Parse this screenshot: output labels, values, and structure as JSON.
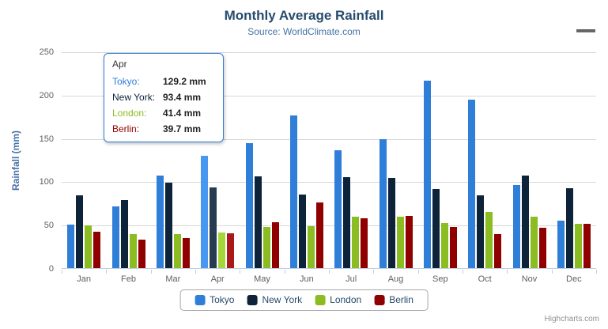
{
  "header": {
    "title": "Monthly Average Rainfall",
    "subtitle": "Source: WorldClimate.com"
  },
  "export_menu": {
    "icon": "hamburger-menu",
    "color": "#666666"
  },
  "chart_data": {
    "type": "bar",
    "title": "Monthly Average Rainfall",
    "subtitle": "Source: WorldClimate.com",
    "xlabel": "",
    "ylabel": "Rainfall (mm)",
    "ylim": [
      0,
      250
    ],
    "yticks": [
      0,
      50,
      100,
      150,
      200,
      250
    ],
    "grid": true,
    "legend_position": "bottom",
    "categories": [
      "Jan",
      "Feb",
      "Mar",
      "Apr",
      "May",
      "Jun",
      "Jul",
      "Aug",
      "Sep",
      "Oct",
      "Nov",
      "Dec"
    ],
    "series": [
      {
        "name": "Tokyo",
        "color": "#2f7ed8",
        "hover_color": "#4897f1",
        "values": [
          49.9,
          71.5,
          106.4,
          129.2,
          144.0,
          176.0,
          135.6,
          148.5,
          216.4,
          194.1,
          95.6,
          54.4
        ]
      },
      {
        "name": "New York",
        "color": "#0d233a",
        "hover_color": "#263c53",
        "values": [
          83.6,
          78.8,
          98.5,
          93.4,
          106.0,
          84.5,
          105.0,
          104.3,
          91.2,
          83.5,
          106.6,
          92.3
        ]
      },
      {
        "name": "London",
        "color": "#8bbc21",
        "hover_color": "#a4d53a",
        "values": [
          48.9,
          38.8,
          39.3,
          41.4,
          47.0,
          48.3,
          59.0,
          59.6,
          52.4,
          65.2,
          59.3,
          51.2
        ]
      },
      {
        "name": "Berlin",
        "color": "#910000",
        "hover_color": "#aa1919",
        "values": [
          42.4,
          33.2,
          34.5,
          39.7,
          52.6,
          75.5,
          57.4,
          60.4,
          47.6,
          39.1,
          46.8,
          51.1
        ]
      }
    ],
    "highlighted_category": "Apr",
    "axis_colors": {
      "grid_line": "#d8d8d8",
      "axis_line": "#c0d0e0",
      "tick_label": "#606060"
    }
  },
  "tooltip": {
    "header": "Apr",
    "border_color": "#2f7ed8",
    "rows": [
      {
        "label": "Tokyo:",
        "value": "129.2 mm",
        "color": "#2f7ed8"
      },
      {
        "label": "New York:",
        "value": "93.4 mm",
        "color": "#0d233a"
      },
      {
        "label": "London:",
        "value": "41.4 mm",
        "color": "#8bbc21"
      },
      {
        "label": "Berlin:",
        "value": "39.7 mm",
        "color": "#910000"
      }
    ]
  },
  "legend": {
    "items": [
      {
        "label": "Tokyo",
        "color": "#2f7ed8"
      },
      {
        "label": "New York",
        "color": "#0d233a"
      },
      {
        "label": "London",
        "color": "#8bbc21"
      },
      {
        "label": "Berlin",
        "color": "#910000"
      }
    ]
  },
  "credits": {
    "label": "Highcharts.com"
  }
}
